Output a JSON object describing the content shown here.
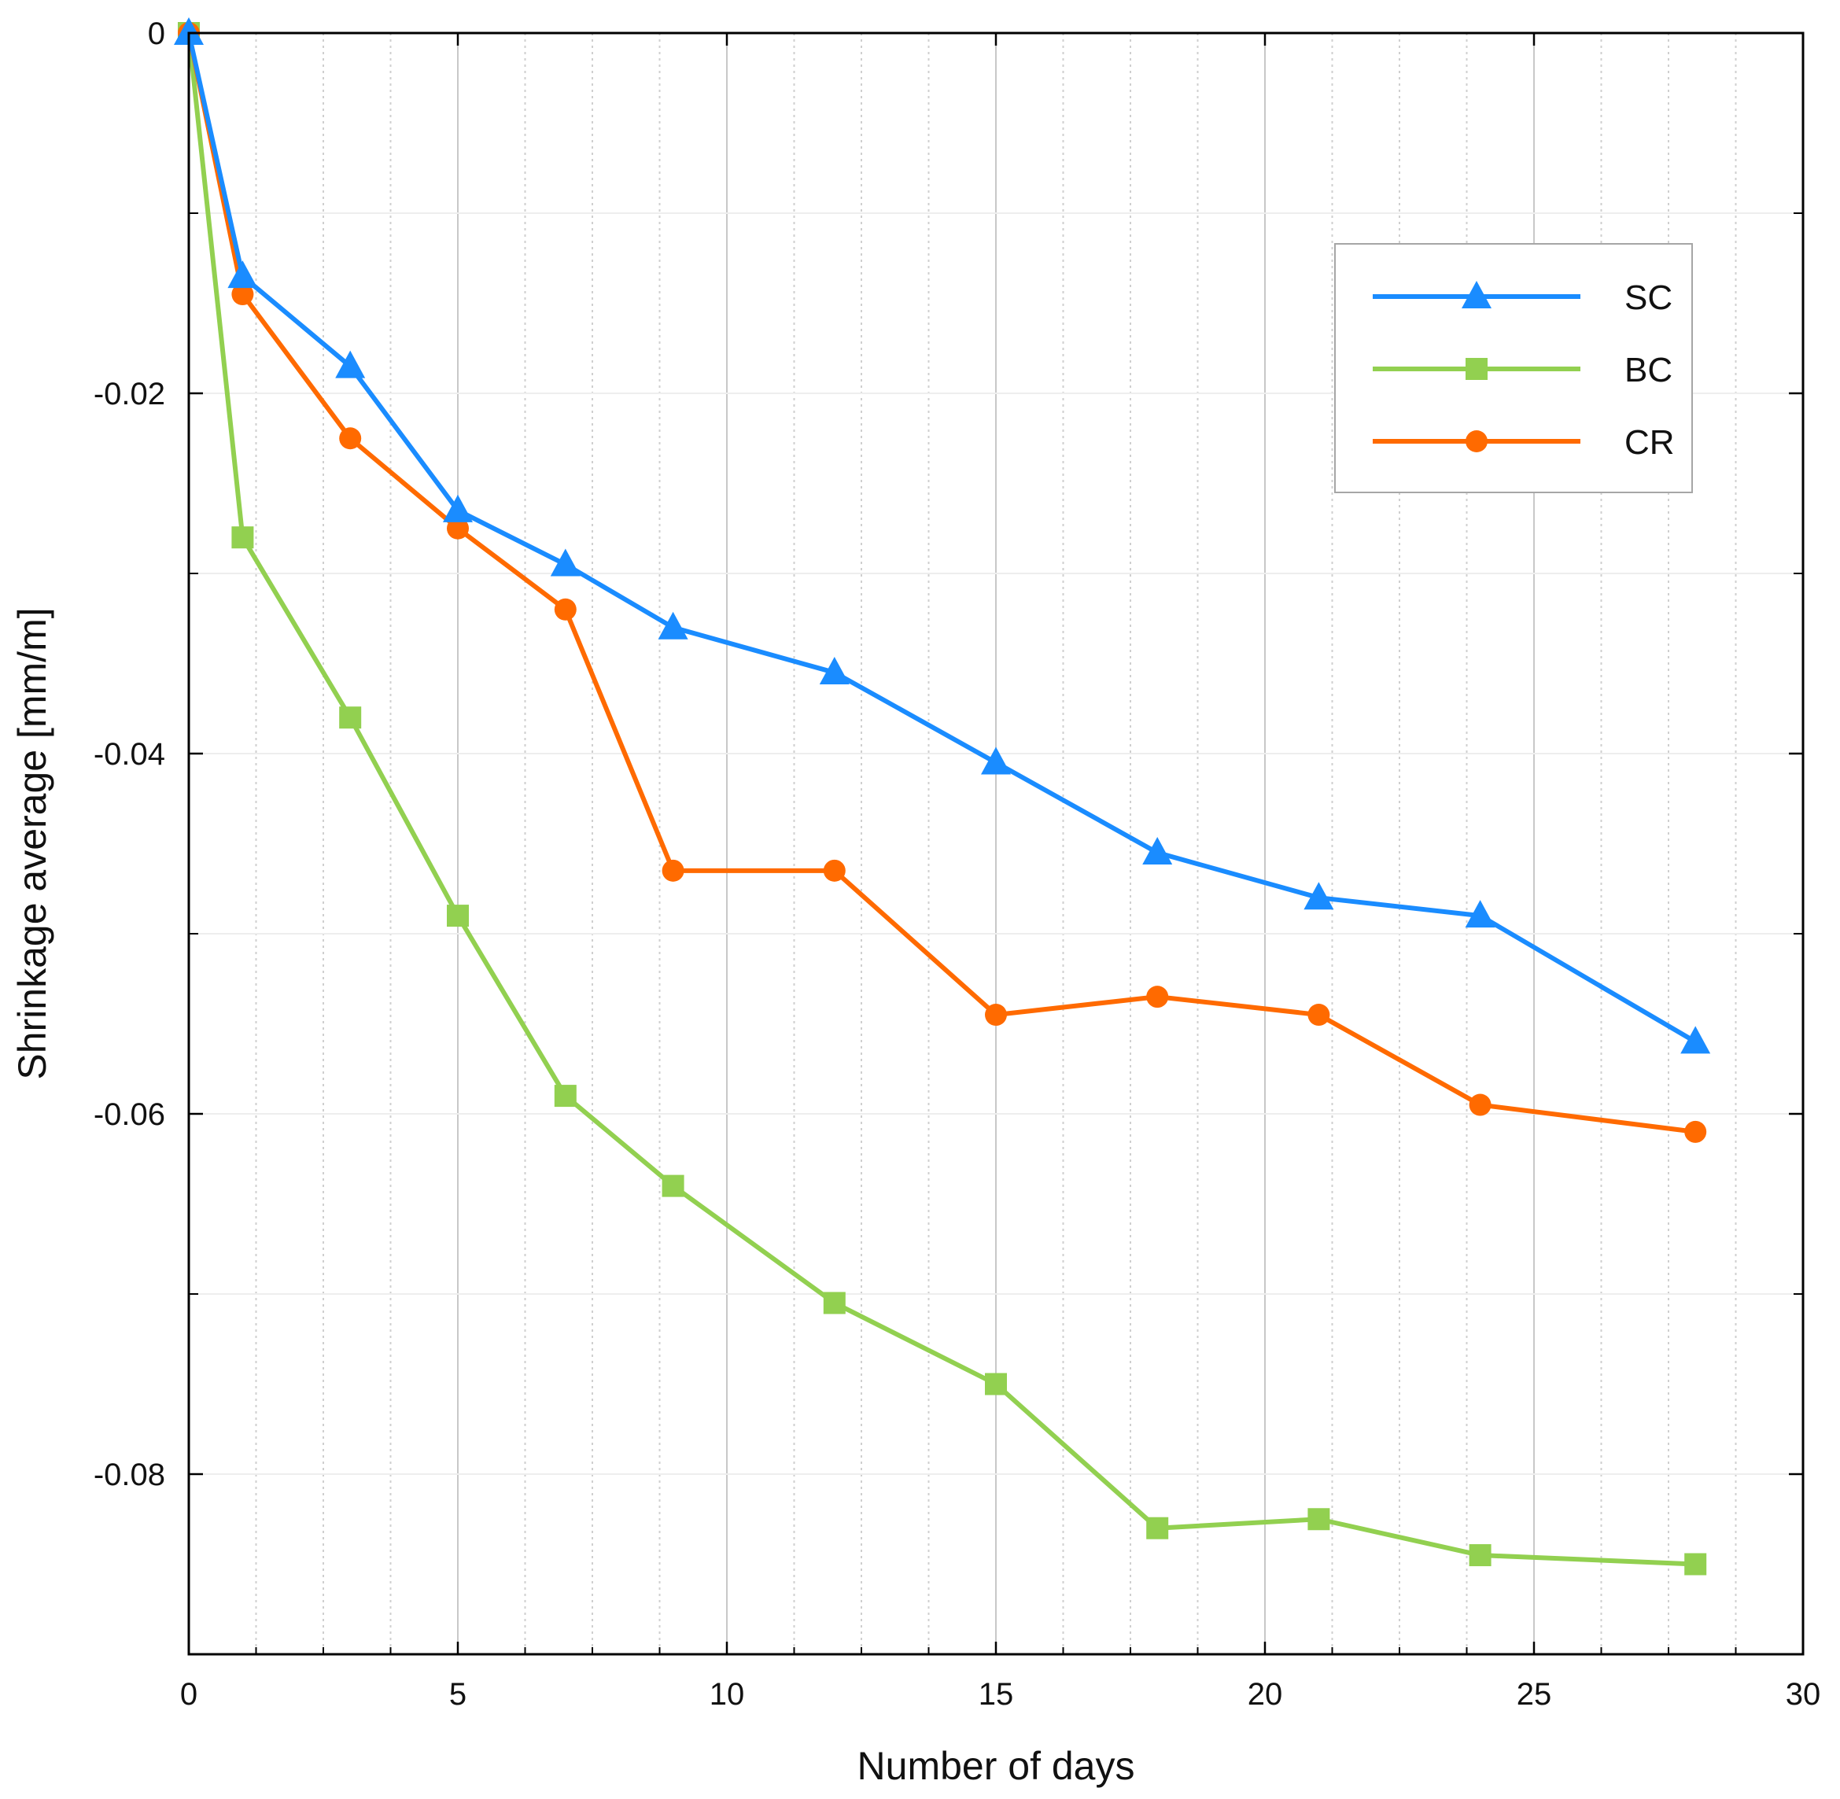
{
  "chart_data": {
    "type": "line",
    "title": "",
    "xlabel": "Number of days",
    "ylabel": "Shrinkage average [mm/m]",
    "xlim": [
      0,
      30
    ],
    "ylim": [
      -0.09,
      0
    ],
    "x_ticks": [
      0,
      5,
      10,
      15,
      20,
      25,
      30
    ],
    "x_tick_labels": [
      "0",
      "5",
      "10",
      "15",
      "20",
      "25",
      "30"
    ],
    "y_ticks": [
      0,
      -0.02,
      -0.04,
      -0.06,
      -0.08
    ],
    "y_tick_labels": [
      "0",
      "-0.02",
      "-0.04",
      "-0.06",
      "-0.08"
    ],
    "grid": true,
    "legend_position": "top-right",
    "series": [
      {
        "name": "SC",
        "color": "#1a8cff",
        "marker": "triangle",
        "x": [
          0,
          1,
          3,
          5,
          7,
          9,
          12,
          15,
          18,
          21,
          24,
          28
        ],
        "values": [
          0,
          -0.0135,
          -0.0185,
          -0.0265,
          -0.0295,
          -0.033,
          -0.0355,
          -0.0405,
          -0.0455,
          -0.048,
          -0.049,
          -0.056
        ]
      },
      {
        "name": "BC",
        "color": "#92d050",
        "marker": "square",
        "x": [
          0,
          1,
          3,
          5,
          7,
          9,
          12,
          15,
          18,
          21,
          24,
          28
        ],
        "values": [
          0,
          -0.028,
          -0.038,
          -0.049,
          -0.059,
          -0.064,
          -0.0705,
          -0.075,
          -0.083,
          -0.0825,
          -0.0845,
          -0.085
        ]
      },
      {
        "name": "CR",
        "color": "#ff6a00",
        "marker": "circle",
        "x": [
          0,
          1,
          3,
          5,
          7,
          9,
          12,
          15,
          18,
          21,
          24,
          28
        ],
        "values": [
          0,
          -0.0145,
          -0.0225,
          -0.0275,
          -0.032,
          -0.0465,
          -0.0465,
          -0.0545,
          -0.0535,
          -0.0545,
          -0.0595,
          -0.061
        ]
      }
    ]
  }
}
